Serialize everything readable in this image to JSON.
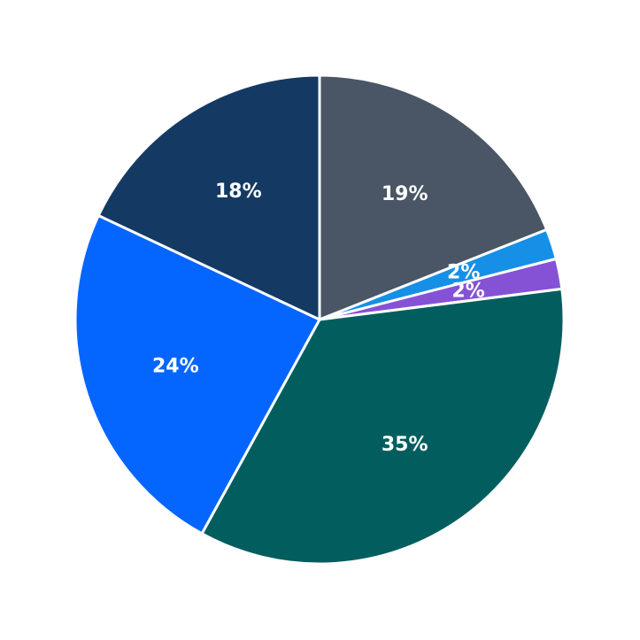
{
  "chart_data": {
    "type": "pie",
    "title": "",
    "start_angle": "12 o'clock",
    "direction": "clockwise",
    "slices": [
      {
        "label": "19%",
        "value": 19,
        "color": "#4a5565"
      },
      {
        "label": "2%",
        "value": 2,
        "color": "#1590e6"
      },
      {
        "label": "2%",
        "value": 2,
        "color": "#8552d6"
      },
      {
        "label": "35%",
        "value": 35,
        "color": "#025e5e"
      },
      {
        "label": "24%",
        "value": 24,
        "color": "#0566ff"
      },
      {
        "label": "18%",
        "value": 18,
        "color": "#143a63"
      }
    ]
  }
}
